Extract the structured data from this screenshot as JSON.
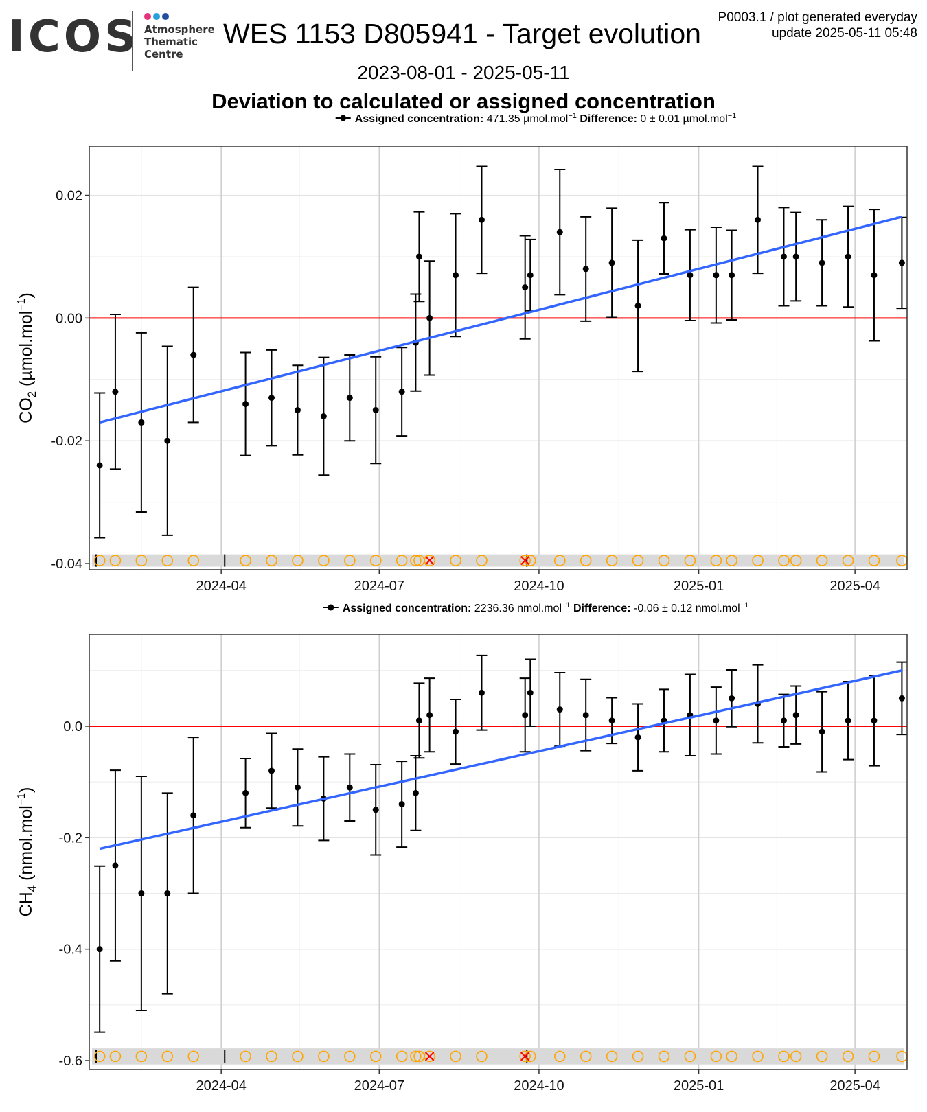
{
  "header": {
    "logo_text": "ICOS",
    "logo_sub": [
      "Atmosphere",
      "Thematic",
      "Centre"
    ],
    "title": "WES 1153 D805941 - Target evolution",
    "meta_line1": "P0003.1 / plot generated everyday",
    "meta_line2": "update  2025-05-11 05:48",
    "date_range": "2023-08-01 - 2025-05-11",
    "subtitle": "Deviation to calculated or assigned concentration"
  },
  "colors": {
    "trend": "#3366ff",
    "zero_line": "#ff0000",
    "points": "#000000",
    "flag_circle": "#ffa500",
    "flag_cross": "#ff0000",
    "flag_band": "#d9d9d9",
    "logo_dots": [
      "#e6337a",
      "#2aa0d8",
      "#1f4e9c"
    ]
  },
  "chart_data": [
    {
      "type": "scatter",
      "panel": "CO2",
      "legend": {
        "assigned_label": "Assigned concentration:",
        "assigned_value": "471.35 µmol.mol",
        "diff_label": "Difference:",
        "diff_value": "0 ± 0.01 µmol.mol",
        "exp": "−1"
      },
      "ylabel_main": "CO",
      "ylabel_sub": "2",
      "ylabel_unit": " (µmol.mol",
      "ylabel_exp": "−1",
      "ylabel_close": ")",
      "ylim": [
        -0.041,
        0.028
      ],
      "yticks": [
        0.02,
        0.0,
        -0.02,
        -0.04
      ],
      "ytick_labels": [
        "0.02",
        "0.00",
        "-0.02",
        "-0.04"
      ],
      "xlim": [
        "2024-01-16",
        "2025-05-01"
      ],
      "xticks": [
        "2024-04-01",
        "2024-07-01",
        "2024-10-01",
        "2025-01-01",
        "2025-04-01"
      ],
      "xtick_labels": [
        "2024-04",
        "2024-07",
        "2024-10",
        "2025-01",
        "2025-04"
      ],
      "grid": true,
      "zero_line": 0,
      "points": [
        {
          "x": "2024-01-22",
          "y": -0.024,
          "err": 0.0118
        },
        {
          "x": "2024-01-31",
          "y": -0.012,
          "err": 0.0126
        },
        {
          "x": "2024-02-15",
          "y": -0.017,
          "err": 0.0146
        },
        {
          "x": "2024-03-01",
          "y": -0.02,
          "err": 0.0154
        },
        {
          "x": "2024-03-16",
          "y": -0.006,
          "err": 0.011
        },
        {
          "x": "2024-04-15",
          "y": -0.014,
          "err": 0.0084
        },
        {
          "x": "2024-04-30",
          "y": -0.013,
          "err": 0.0078
        },
        {
          "x": "2024-05-15",
          "y": -0.015,
          "err": 0.0073
        },
        {
          "x": "2024-05-30",
          "y": -0.016,
          "err": 0.0096
        },
        {
          "x": "2024-06-14",
          "y": -0.013,
          "err": 0.007
        },
        {
          "x": "2024-06-29",
          "y": -0.015,
          "err": 0.0087
        },
        {
          "x": "2024-07-14",
          "y": -0.012,
          "err": 0.0072
        },
        {
          "x": "2024-07-22",
          "y": -0.004,
          "err": 0.0079
        },
        {
          "x": "2024-07-24",
          "y": 0.01,
          "err": 0.0073
        },
        {
          "x": "2024-07-30",
          "y": 0.0,
          "err": 0.0093
        },
        {
          "x": "2024-08-14",
          "y": 0.007,
          "err": 0.01
        },
        {
          "x": "2024-08-29",
          "y": 0.016,
          "err": 0.0087
        },
        {
          "x": "2024-09-23",
          "y": 0.005,
          "err": 0.0084
        },
        {
          "x": "2024-09-26",
          "y": 0.007,
          "err": 0.0058
        },
        {
          "x": "2024-10-13",
          "y": 0.014,
          "err": 0.0102
        },
        {
          "x": "2024-10-28",
          "y": 0.008,
          "err": 0.0085
        },
        {
          "x": "2024-11-12",
          "y": 0.009,
          "err": 0.0089
        },
        {
          "x": "2024-11-27",
          "y": 0.002,
          "err": 0.0107
        },
        {
          "x": "2024-12-12",
          "y": 0.013,
          "err": 0.0058
        },
        {
          "x": "2024-12-27",
          "y": 0.007,
          "err": 0.0074
        },
        {
          "x": "2025-01-11",
          "y": 0.007,
          "err": 0.0078
        },
        {
          "x": "2025-01-20",
          "y": 0.007,
          "err": 0.0073
        },
        {
          "x": "2025-02-04",
          "y": 0.016,
          "err": 0.0087
        },
        {
          "x": "2025-02-19",
          "y": 0.01,
          "err": 0.008
        },
        {
          "x": "2025-02-26",
          "y": 0.01,
          "err": 0.0072
        },
        {
          "x": "2025-03-13",
          "y": 0.009,
          "err": 0.007
        },
        {
          "x": "2025-03-28",
          "y": 0.01,
          "err": 0.0082
        },
        {
          "x": "2025-04-12",
          "y": 0.007,
          "err": 0.0107
        },
        {
          "x": "2025-04-28",
          "y": 0.009,
          "err": 0.0074
        }
      ],
      "trend": {
        "x": [
          "2024-01-22",
          "2025-04-28"
        ],
        "y": [
          -0.017,
          0.0165
        ]
      },
      "flag_y": -0.0395,
      "band": [
        -0.0405,
        -0.0385
      ],
      "flag_circles": [
        "2024-01-22",
        "2024-01-31",
        "2024-02-15",
        "2024-03-01",
        "2024-03-16",
        "2024-04-15",
        "2024-04-30",
        "2024-05-15",
        "2024-05-30",
        "2024-06-14",
        "2024-06-29",
        "2024-07-14",
        "2024-07-22",
        "2024-07-24",
        "2024-08-14",
        "2024-08-29",
        "2024-09-26",
        "2024-10-13",
        "2024-10-28",
        "2024-11-12",
        "2024-11-27",
        "2024-12-12",
        "2024-12-27",
        "2025-01-11",
        "2025-01-20",
        "2025-02-04",
        "2025-02-19",
        "2025-02-26",
        "2025-03-13",
        "2025-03-28",
        "2025-04-12",
        "2025-04-28"
      ],
      "flag_crosses": [
        "2024-07-30",
        "2024-09-23"
      ],
      "flag_ticks": [
        "2024-01-05",
        "2024-04-03",
        "2024-09-24"
      ]
    },
    {
      "type": "scatter",
      "panel": "CH4",
      "legend": {
        "assigned_label": "Assigned concentration:",
        "assigned_value": "2236.36 nmol.mol",
        "diff_label": "Difference:",
        "diff_value": "-0.06 ± 0.12 nmol.mol",
        "exp": "−1"
      },
      "ylabel_main": "CH",
      "ylabel_sub": "4",
      "ylabel_unit": " (nmol.mol",
      "ylabel_exp": "−1",
      "ylabel_close": ")",
      "ylim": [
        -0.616,
        0.165
      ],
      "yticks": [
        0.0,
        -0.2,
        -0.4,
        -0.6
      ],
      "ytick_labels": [
        "0.0",
        "-0.2",
        "-0.4",
        "-0.6"
      ],
      "xlim": [
        "2024-01-16",
        "2025-05-01"
      ],
      "xticks": [
        "2024-04-01",
        "2024-07-01",
        "2024-10-01",
        "2025-01-01",
        "2025-04-01"
      ],
      "xtick_labels": [
        "2024-04",
        "2024-07",
        "2024-10",
        "2025-01",
        "2025-04"
      ],
      "grid": true,
      "zero_line": 0,
      "points": [
        {
          "x": "2024-01-22",
          "y": -0.4,
          "err": 0.149
        },
        {
          "x": "2024-01-31",
          "y": -0.25,
          "err": 0.171
        },
        {
          "x": "2024-02-15",
          "y": -0.3,
          "err": 0.21
        },
        {
          "x": "2024-03-01",
          "y": -0.3,
          "err": 0.18
        },
        {
          "x": "2024-03-16",
          "y": -0.16,
          "err": 0.14
        },
        {
          "x": "2024-04-15",
          "y": -0.12,
          "err": 0.062
        },
        {
          "x": "2024-04-30",
          "y": -0.08,
          "err": 0.067
        },
        {
          "x": "2024-05-15",
          "y": -0.11,
          "err": 0.069
        },
        {
          "x": "2024-05-30",
          "y": -0.13,
          "err": 0.075
        },
        {
          "x": "2024-06-14",
          "y": -0.11,
          "err": 0.06
        },
        {
          "x": "2024-06-29",
          "y": -0.15,
          "err": 0.081
        },
        {
          "x": "2024-07-14",
          "y": -0.14,
          "err": 0.077
        },
        {
          "x": "2024-07-22",
          "y": -0.12,
          "err": 0.067
        },
        {
          "x": "2024-07-24",
          "y": 0.01,
          "err": 0.067
        },
        {
          "x": "2024-07-30",
          "y": 0.02,
          "err": 0.066
        },
        {
          "x": "2024-08-14",
          "y": -0.01,
          "err": 0.058
        },
        {
          "x": "2024-08-29",
          "y": 0.06,
          "err": 0.067
        },
        {
          "x": "2024-09-23",
          "y": 0.02,
          "err": 0.066
        },
        {
          "x": "2024-09-26",
          "y": 0.06,
          "err": 0.06
        },
        {
          "x": "2024-10-13",
          "y": 0.03,
          "err": 0.066
        },
        {
          "x": "2024-10-28",
          "y": 0.02,
          "err": 0.064
        },
        {
          "x": "2024-11-12",
          "y": 0.01,
          "err": 0.041
        },
        {
          "x": "2024-11-27",
          "y": -0.02,
          "err": 0.06
        },
        {
          "x": "2024-12-12",
          "y": 0.01,
          "err": 0.056
        },
        {
          "x": "2024-12-27",
          "y": 0.02,
          "err": 0.073
        },
        {
          "x": "2025-01-11",
          "y": 0.01,
          "err": 0.06
        },
        {
          "x": "2025-01-20",
          "y": 0.05,
          "err": 0.051
        },
        {
          "x": "2025-02-04",
          "y": 0.04,
          "err": 0.07
        },
        {
          "x": "2025-02-19",
          "y": 0.01,
          "err": 0.047
        },
        {
          "x": "2025-02-26",
          "y": 0.02,
          "err": 0.052
        },
        {
          "x": "2025-03-13",
          "y": -0.01,
          "err": 0.072
        },
        {
          "x": "2025-03-28",
          "y": 0.01,
          "err": 0.07
        },
        {
          "x": "2025-04-12",
          "y": 0.01,
          "err": 0.081
        },
        {
          "x": "2025-04-28",
          "y": 0.05,
          "err": 0.065
        }
      ],
      "trend": {
        "x": [
          "2024-01-22",
          "2025-04-28"
        ],
        "y": [
          -0.22,
          0.1
        ]
      },
      "flag_y": -0.5925,
      "band": [
        -0.607,
        -0.578
      ],
      "flag_circles": [
        "2024-01-22",
        "2024-01-31",
        "2024-02-15",
        "2024-03-01",
        "2024-03-16",
        "2024-04-15",
        "2024-04-30",
        "2024-05-15",
        "2024-05-30",
        "2024-06-14",
        "2024-06-29",
        "2024-07-14",
        "2024-07-22",
        "2024-07-24",
        "2024-08-14",
        "2024-08-29",
        "2024-09-26",
        "2024-10-13",
        "2024-10-28",
        "2024-11-12",
        "2024-11-27",
        "2024-12-12",
        "2024-12-27",
        "2025-01-11",
        "2025-01-20",
        "2025-02-04",
        "2025-02-19",
        "2025-02-26",
        "2025-03-13",
        "2025-03-28",
        "2025-04-12",
        "2025-04-28"
      ],
      "flag_crosses": [
        "2024-07-30",
        "2024-09-23"
      ],
      "flag_ticks": [
        "2024-01-05",
        "2024-04-03",
        "2024-09-24"
      ]
    }
  ]
}
